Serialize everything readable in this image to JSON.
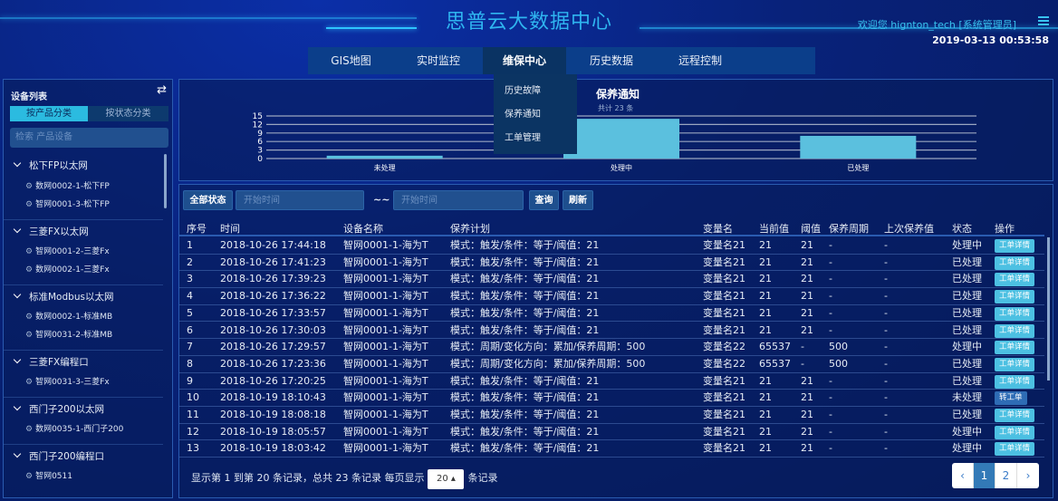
{
  "header": {
    "title": "思普云大数据中心",
    "welcome": "欢迎您  hignton_tech [系统管理员]",
    "datetime": "2019-03-13 00:53:58"
  },
  "nav": {
    "items": [
      {
        "label": "GIS地图"
      },
      {
        "label": "实时监控"
      },
      {
        "label": "维保中心",
        "active": true
      },
      {
        "label": "历史数据"
      },
      {
        "label": "远程控制"
      }
    ],
    "dropdown": [
      "历史故障",
      "保养通知",
      "工单管理"
    ]
  },
  "sidebar": {
    "title": "设备列表",
    "tabs": [
      "按产品分类",
      "按状态分类"
    ],
    "active_tab": 0,
    "search_placeholder": "检索 产品设备",
    "groups": [
      {
        "name": "松下FP以太网",
        "devices": [
          "数网0002-1-松下FP",
          "智网0001-3-松下FP"
        ]
      },
      {
        "name": "三菱FX以太网",
        "devices": [
          "智网0001-2-三菱Fx",
          "数网0002-1-三菱Fx"
        ]
      },
      {
        "name": "标准Modbus以太网",
        "devices": [
          "数网0002-1-标准MB",
          "智网0031-2-标准MB"
        ]
      },
      {
        "name": "三菱FX编程口",
        "devices": [
          "智网0031-3-三菱Fx"
        ]
      },
      {
        "name": "西门子200以太网",
        "devices": [
          "数网0035-1-西门子200"
        ]
      },
      {
        "name": "西门子200编程口",
        "devices": [
          "智网0511"
        ]
      }
    ]
  },
  "chart_data": {
    "type": "bar",
    "title": "保养通知",
    "subtitle": "共计 23 条",
    "categories": [
      "未处理",
      "处理中",
      "已处理"
    ],
    "values": [
      1,
      14,
      8
    ],
    "yticks": [
      0,
      3,
      6,
      9,
      12,
      15
    ],
    "ylim": [
      0,
      15
    ],
    "grid": true,
    "color": "#5bc0de"
  },
  "filter": {
    "all_status": "全部状态",
    "start_placeholder": "开始时间",
    "end_placeholder": "开始时间",
    "separator": "~~",
    "query": "查询",
    "refresh": "刷新"
  },
  "table": {
    "columns": [
      "序号",
      "时间",
      "设备名称",
      "保养计划",
      "变量名",
      "当前值",
      "阈值",
      "保养周期",
      "上次保养值",
      "状态",
      "操作"
    ],
    "rows": [
      [
        "1",
        "2018-10-26 17:44:18",
        "智网0001-1-海为T",
        "模式：触发/条件：等于/阈值：21",
        "变量名21",
        "21",
        "21",
        "-",
        "-",
        "处理中",
        "工单详情"
      ],
      [
        "2",
        "2018-10-26 17:41:23",
        "智网0001-1-海为T",
        "模式：触发/条件：等于/阈值：21",
        "变量名21",
        "21",
        "21",
        "-",
        "-",
        "已处理",
        "工单详情"
      ],
      [
        "3",
        "2018-10-26 17:39:23",
        "智网0001-1-海为T",
        "模式：触发/条件：等于/阈值：21",
        "变量名21",
        "21",
        "21",
        "-",
        "-",
        "已处理",
        "工单详情"
      ],
      [
        "4",
        "2018-10-26 17:36:22",
        "智网0001-1-海为T",
        "模式：触发/条件：等于/阈值：21",
        "变量名21",
        "21",
        "21",
        "-",
        "-",
        "已处理",
        "工单详情"
      ],
      [
        "5",
        "2018-10-26 17:33:57",
        "智网0001-1-海为T",
        "模式：触发/条件：等于/阈值：21",
        "变量名21",
        "21",
        "21",
        "-",
        "-",
        "已处理",
        "工单详情"
      ],
      [
        "6",
        "2018-10-26 17:30:03",
        "智网0001-1-海为T",
        "模式：触发/条件：等于/阈值：21",
        "变量名21",
        "21",
        "21",
        "-",
        "-",
        "已处理",
        "工单详情"
      ],
      [
        "7",
        "2018-10-26 17:29:57",
        "智网0001-1-海为T",
        "模式：周期/变化方向：累加/保养周期：500",
        "变量名22",
        "65537",
        "-",
        "500",
        "-",
        "处理中",
        "工单详情"
      ],
      [
        "8",
        "2018-10-26 17:23:36",
        "智网0001-1-海为T",
        "模式：周期/变化方向：累加/保养周期：500",
        "变量名22",
        "65537",
        "-",
        "500",
        "-",
        "已处理",
        "工单详情"
      ],
      [
        "9",
        "2018-10-26 17:20:25",
        "智网0001-1-海为T",
        "模式：触发/条件：等于/阈值：21",
        "变量名21",
        "21",
        "21",
        "-",
        "-",
        "已处理",
        "工单详情"
      ],
      [
        "10",
        "2018-10-19 18:10:43",
        "智网0001-1-海为T",
        "模式：触发/条件：等于/阈值：21",
        "变量名21",
        "21",
        "21",
        "-",
        "-",
        "未处理",
        "转工单"
      ],
      [
        "11",
        "2018-10-19 18:08:18",
        "智网0001-1-海为T",
        "模式：触发/条件：等于/阈值：21",
        "变量名21",
        "21",
        "21",
        "-",
        "-",
        "已处理",
        "工单详情"
      ],
      [
        "12",
        "2018-10-19 18:05:57",
        "智网0001-1-海为T",
        "模式：触发/条件：等于/阈值：21",
        "变量名21",
        "21",
        "21",
        "-",
        "-",
        "处理中",
        "工单详情"
      ],
      [
        "13",
        "2018-10-19 18:03:42",
        "智网0001-1-海为T",
        "模式：触发/条件：等于/阈值：21",
        "变量名21",
        "21",
        "21",
        "-",
        "-",
        "处理中",
        "工单详情"
      ]
    ]
  },
  "footer": {
    "summary": "显示第 1 到第 20 条记录，总共 23 条记录 每页显示",
    "page_size": "20 ▴",
    "suffix": "条记录"
  },
  "pagination": {
    "prev": "‹",
    "pages": [
      "1",
      "2"
    ],
    "current": "1",
    "next": "›"
  }
}
